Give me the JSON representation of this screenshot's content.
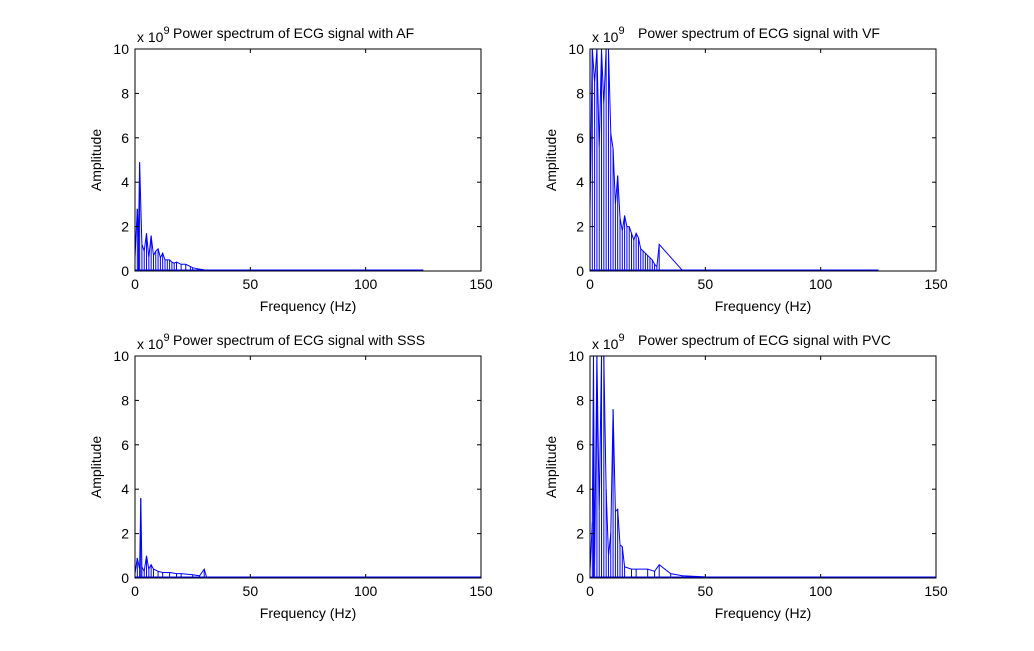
{
  "figure": {
    "background": "#ffffff",
    "line_color": "#0000ff"
  },
  "chart_data": [
    {
      "type": "line",
      "title": "Power spectrum of ECG signal with AF",
      "xlabel": "Frequency (Hz)",
      "ylabel": "Amplitude",
      "xlim": [
        0,
        150
      ],
      "ylim": [
        0,
        10
      ],
      "xticks": [
        "0",
        "50",
        "100",
        "150"
      ],
      "yticks": [
        "0",
        "2",
        "4",
        "6",
        "8",
        "10"
      ],
      "exponent_base": "x 10",
      "exponent_power": "9",
      "grid": false,
      "series": [
        {
          "x": [
            0,
            1,
            1.5,
            2,
            3,
            4,
            5,
            6,
            7,
            8,
            9,
            10,
            11,
            12,
            13,
            14,
            15,
            16,
            17,
            18,
            20,
            22,
            24,
            25,
            27,
            30,
            40,
            60,
            80,
            100,
            125
          ],
          "y": [
            0.6,
            2.8,
            1.5,
            4.9,
            1.2,
            0.9,
            1.7,
            0.6,
            1.6,
            0.7,
            0.9,
            1.0,
            0.6,
            0.8,
            0.5,
            0.5,
            0.5,
            0.4,
            0.35,
            0.4,
            0.3,
            0.3,
            0.2,
            0.15,
            0.1,
            0.05,
            0.04,
            0.03,
            0.03,
            0.02,
            0.02
          ]
        }
      ]
    },
    {
      "type": "line",
      "title": "Power spectrum of ECG signal with VF",
      "xlabel": "Frequency (Hz)",
      "ylabel": "Amplitude",
      "xlim": [
        0,
        150
      ],
      "ylim": [
        0,
        10
      ],
      "xticks": [
        "0",
        "50",
        "100",
        "150"
      ],
      "yticks": [
        "0",
        "2",
        "4",
        "6",
        "8",
        "10"
      ],
      "exponent_base": "x 10",
      "exponent_power": "9",
      "grid": false,
      "series": [
        {
          "x": [
            0,
            1,
            2,
            3,
            4,
            5,
            6,
            7,
            8,
            9,
            10,
            11,
            12,
            13,
            14,
            15,
            16,
            17,
            18,
            19,
            20,
            21,
            22,
            23,
            24,
            25,
            26,
            27,
            28,
            29,
            30,
            40,
            60,
            80,
            100,
            125
          ],
          "y": [
            2.7,
            10,
            8.5,
            10,
            5.5,
            10,
            7.5,
            10,
            10,
            6.2,
            5.5,
            3.0,
            4.3,
            2.4,
            1.8,
            2.5,
            2.0,
            2.0,
            1.7,
            1.4,
            1.7,
            1.5,
            1.0,
            0.9,
            0.8,
            0.7,
            0.6,
            0.5,
            0.3,
            0.2,
            1.2,
            0.03,
            0.03,
            0.03,
            0.03,
            0.03
          ]
        }
      ]
    },
    {
      "type": "line",
      "title": "Power spectrum of ECG signal with SSS",
      "xlabel": "Frequency (Hz)",
      "ylabel": "Amplitude",
      "xlim": [
        0,
        150
      ],
      "ylim": [
        0,
        10
      ],
      "xticks": [
        "0",
        "50",
        "100",
        "150"
      ],
      "yticks": [
        "0",
        "2",
        "4",
        "6",
        "8",
        "10"
      ],
      "exponent_base": "x 10",
      "exponent_power": "9",
      "grid": false,
      "series": [
        {
          "x": [
            0,
            1,
            2,
            2.5,
            3,
            4,
            5,
            6,
            7,
            8,
            10,
            12,
            15,
            18,
            20,
            25,
            28,
            30,
            31,
            40,
            60,
            80,
            100,
            125,
            150
          ],
          "y": [
            0.2,
            0.9,
            0.4,
            3.6,
            0.5,
            0.3,
            1.0,
            0.4,
            0.6,
            0.4,
            0.3,
            0.25,
            0.25,
            0.2,
            0.2,
            0.15,
            0.1,
            0.4,
            0.05,
            0.03,
            0.03,
            0.02,
            0.02,
            0.02,
            0.02
          ]
        }
      ]
    },
    {
      "type": "line",
      "title": "Power spectrum of ECG signal with PVC",
      "xlabel": "Frequency (Hz)",
      "ylabel": "Amplitude",
      "xlim": [
        0,
        150
      ],
      "ylim": [
        0,
        10
      ],
      "xticks": [
        "0",
        "50",
        "100",
        "150"
      ],
      "yticks": [
        "0",
        "2",
        "4",
        "6",
        "8",
        "10"
      ],
      "exponent_base": "x 10",
      "exponent_power": "9",
      "grid": false,
      "series": [
        {
          "x": [
            0,
            1,
            1.5,
            2,
            3,
            4,
            5,
            6,
            7,
            8,
            9,
            10,
            11,
            12,
            13,
            14,
            15,
            18,
            20,
            25,
            28,
            30,
            35,
            40,
            50,
            60,
            80,
            100,
            125,
            150
          ],
          "y": [
            0.3,
            2.5,
            10,
            0.5,
            10,
            3.0,
            10,
            10,
            4.0,
            1.0,
            2.0,
            7.6,
            3.0,
            3.1,
            1.5,
            1.4,
            0.5,
            0.4,
            0.4,
            0.4,
            0.3,
            0.6,
            0.2,
            0.1,
            0.05,
            0.04,
            0.03,
            0.02,
            0.02,
            0.02
          ]
        }
      ]
    }
  ]
}
